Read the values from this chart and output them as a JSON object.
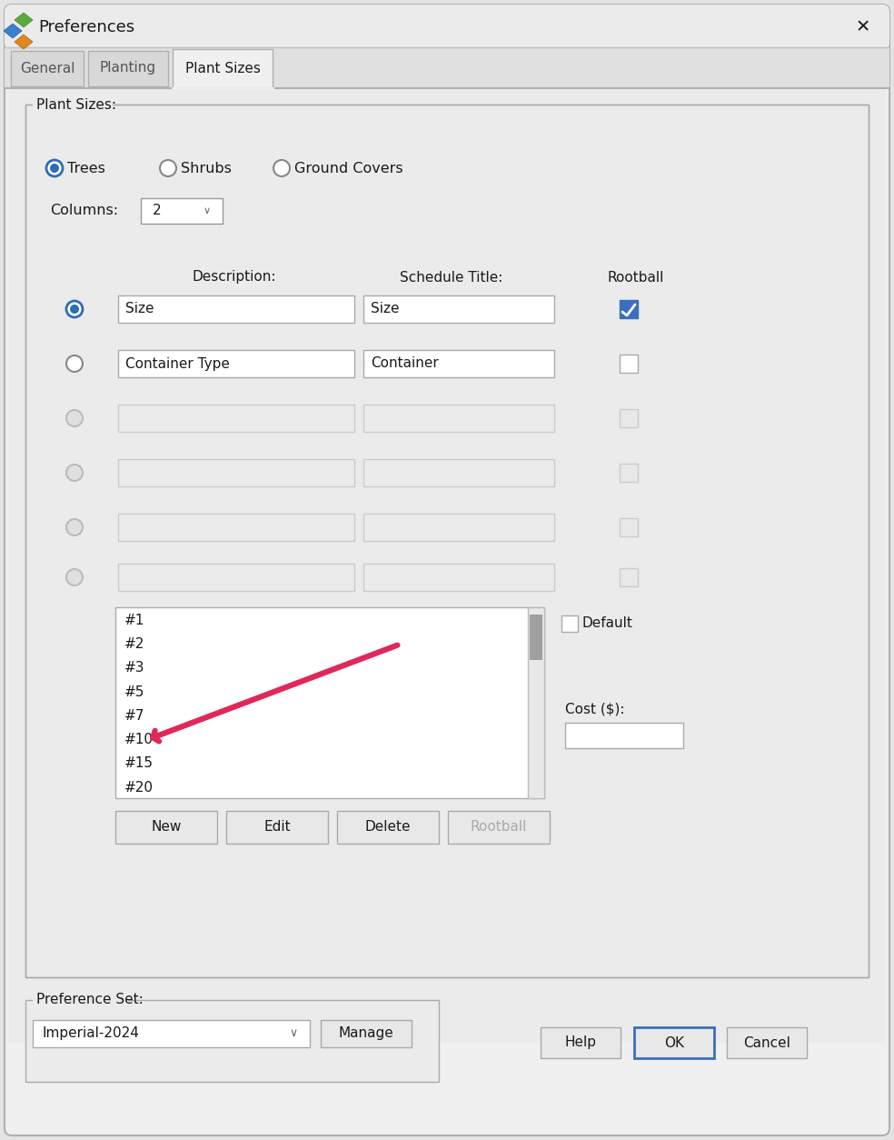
{
  "title": "Preferences",
  "bg_color": "#e4e4e4",
  "dialog_bg": "#f0f0f0",
  "inner_bg": "#ebebeb",
  "white": "#ffffff",
  "border_color": "#b0b0b0",
  "blue_radio": "#2e6db4",
  "blue_check": "#3a6fbd",
  "text_color": "#1a1a1a",
  "tab_active_bg": "#f0f0f0",
  "ok_border": "#3a6fbd",
  "list_items": [
    "#1",
    "#2",
    "#3",
    "#5",
    "#7",
    "#10",
    "#15",
    "#20"
  ],
  "radio_options": [
    "Trees",
    "Shrubs",
    "Ground Covers"
  ],
  "columns_label": "Columns:",
  "columns_value": "2",
  "description_label": "Description:",
  "schedule_title_label": "Schedule Title:",
  "rootball_label": "Rootball",
  "cost_label": "Cost ($):",
  "default_label": "Default",
  "preference_set_label": "Preference Set:",
  "preference_set_value": "Imperial-2024",
  "tabs": [
    "General",
    "Planting",
    "Plant Sizes"
  ],
  "buttons": [
    "New",
    "Edit",
    "Delete",
    "Rootball"
  ],
  "bottom_buttons": [
    "Help",
    "OK",
    "Cancel"
  ],
  "manage_btn": "Manage",
  "arrow_color": "#e0285a",
  "plant_sizes_label": "Plant Sizes:",
  "field_rows": [
    {
      "desc": "Size",
      "sched": "Size",
      "rootball": true,
      "radio_selected": true
    },
    {
      "desc": "Container Type",
      "sched": "Container",
      "rootball": false,
      "radio_selected": false
    },
    {
      "desc": "",
      "sched": "",
      "rootball": false,
      "radio_selected": false
    },
    {
      "desc": "",
      "sched": "",
      "rootball": false,
      "radio_selected": false
    },
    {
      "desc": "",
      "sched": "",
      "rootball": false,
      "radio_selected": false
    },
    {
      "desc": "",
      "sched": "",
      "rootball": false,
      "radio_selected": false
    }
  ]
}
